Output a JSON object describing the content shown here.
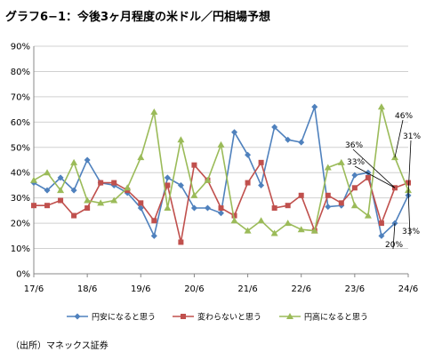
{
  "title": "グラフ6−1：今後3ヶ月程度の米ドル／円相場予想",
  "source": "（出所）マネックス証券",
  "chart_data": {
    "type": "line",
    "title": "グラフ6−1：今後3ヶ月程度の米ドル／円相場予想",
    "x_tick_labels": [
      "17/6",
      "18/6",
      "19/6",
      "20/6",
      "21/6",
      "22/6",
      "23/6",
      "24/6"
    ],
    "y_tick_labels": [
      "0%",
      "10%",
      "20%",
      "30%",
      "40%",
      "50%",
      "60%",
      "70%",
      "80%",
      "90%"
    ],
    "ylim": [
      0,
      90
    ],
    "y_unit": "%",
    "grid": "horizontal",
    "legend_position": "bottom",
    "points_per_series": 29,
    "series": [
      {
        "name": "円安になると思う",
        "color": "#4f81bd",
        "marker": "diamond",
        "values": [
          36,
          33,
          38,
          33,
          45,
          36,
          35,
          32,
          26,
          15,
          38,
          35,
          26,
          26,
          24,
          56,
          47,
          35,
          58,
          53,
          52,
          66,
          26.5,
          27,
          39,
          40,
          15,
          20,
          31
        ]
      },
      {
        "name": "変わらないと思う",
        "color": "#c0504d",
        "marker": "square",
        "values": [
          27,
          27,
          29,
          23,
          26,
          36,
          36,
          33,
          28,
          21,
          35,
          12.5,
          43,
          37,
          26,
          23,
          36,
          44,
          26,
          27,
          31,
          17,
          31,
          28,
          34,
          38,
          20,
          34,
          36
        ]
      },
      {
        "name": "円高になると思う",
        "color": "#9bbb59",
        "marker": "triangle",
        "values": [
          37,
          40,
          33,
          44,
          29,
          28,
          29,
          34,
          46,
          64,
          26,
          53,
          31,
          37,
          51,
          21,
          17,
          21,
          16,
          20,
          17.5,
          17,
          42,
          44,
          27,
          23,
          66,
          46,
          33
        ]
      }
    ],
    "annotations": [
      {
        "text": "46%",
        "series": "円高になると思う"
      },
      {
        "text": "36%",
        "series": "変わらないと思う"
      },
      {
        "text": "33%",
        "series": "円高になると思う"
      },
      {
        "text": "31%",
        "series": "円安になると思う"
      },
      {
        "text": "20%",
        "series": "円安になると思う"
      },
      {
        "text": "33%",
        "series": "円高になると思う"
      }
    ]
  }
}
